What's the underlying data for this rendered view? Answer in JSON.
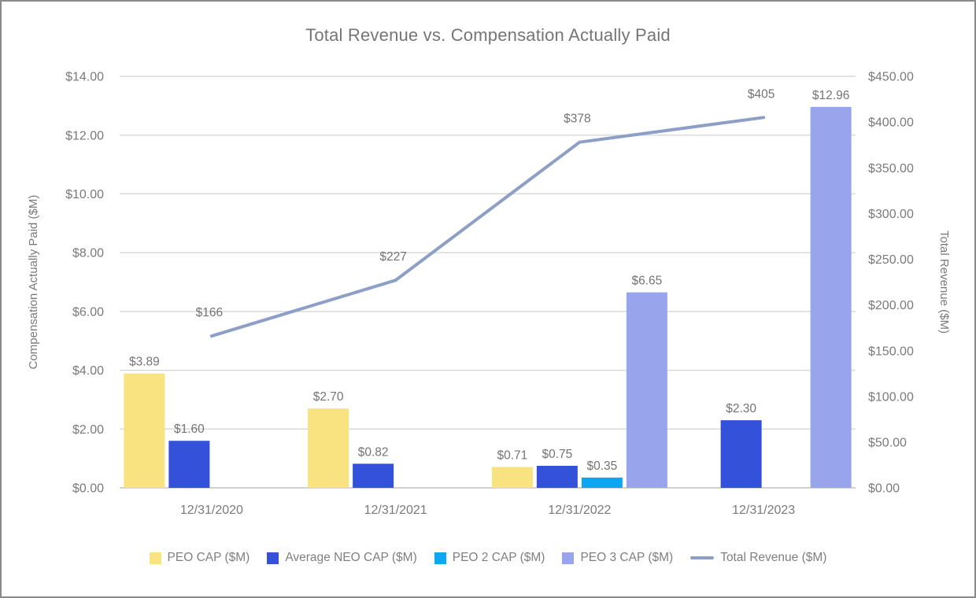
{
  "chart_data": {
    "type": "bar+line",
    "title": "Total Revenue vs. Compensation Actually Paid",
    "categories": [
      "12/31/2020",
      "12/31/2021",
      "12/31/2022",
      "12/31/2023"
    ],
    "bar_series": [
      {
        "name": "PEO CAP ($M)",
        "color": "#f9e381",
        "values": [
          3.89,
          2.7,
          0.71,
          null
        ],
        "labels": [
          "$3.89",
          "$2.70",
          "$0.71",
          ""
        ]
      },
      {
        "name": "Average NEO CAP ($M)",
        "color": "#3452d9",
        "values": [
          1.6,
          0.82,
          0.75,
          2.3
        ],
        "labels": [
          "$1.60",
          "$0.82",
          "$0.75",
          "$2.30"
        ]
      },
      {
        "name": "PEO 2 CAP ($M)",
        "color": "#0ea6f2",
        "values": [
          null,
          null,
          0.35,
          null
        ],
        "labels": [
          "",
          "",
          "$0.35",
          ""
        ]
      },
      {
        "name": "PEO 3 CAP ($M)",
        "color": "#98a5ec",
        "values": [
          null,
          null,
          6.65,
          12.96
        ],
        "labels": [
          "",
          "",
          "$6.65",
          "$12.96"
        ]
      }
    ],
    "line_series": {
      "name": "Total Revenue ($M)",
      "color": "#8d9fc7",
      "values": [
        166,
        227,
        378,
        405
      ],
      "labels": [
        "$166",
        "$227",
        "$378",
        "$405"
      ]
    },
    "left_axis": {
      "title": "Compensation Actually Paid ($M)",
      "min": 0,
      "max": 14,
      "step": 2,
      "tick_labels": [
        "$0.00",
        "$2.00",
        "$4.00",
        "$6.00",
        "$8.00",
        "$10.00",
        "$12.00",
        "$14.00"
      ]
    },
    "right_axis": {
      "title": "Total Revenue ($M)",
      "min": 0,
      "max": 450,
      "step": 50,
      "tick_labels": [
        "$0.00",
        "$50.00",
        "$100.00",
        "$150.00",
        "$200.00",
        "$250.00",
        "$300.00",
        "$350.00",
        "$400.00",
        "$450.00"
      ]
    },
    "grid": {
      "color": "#dadada",
      "baseline_color": "#c2c2c2"
    },
    "text_color": "#7a7a7a",
    "legend_position": "bottom"
  }
}
